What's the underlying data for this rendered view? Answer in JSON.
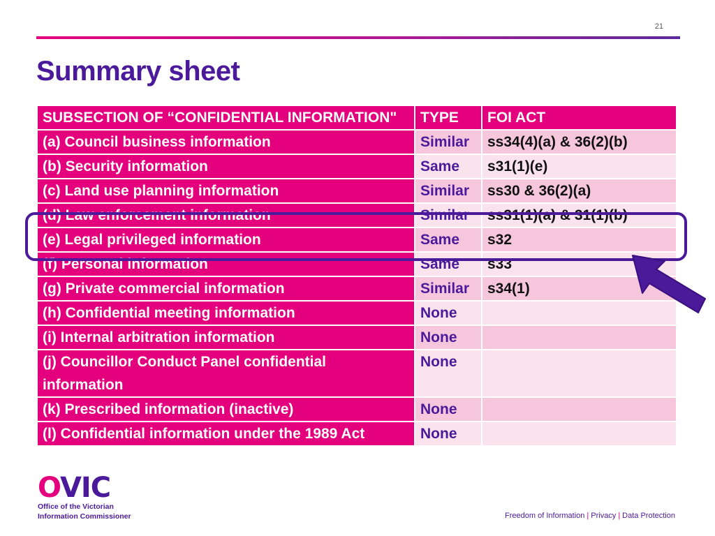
{
  "page_number": "21",
  "title": "Summary sheet",
  "table": {
    "headers": [
      "SUBSECTION OF “CONFIDENTIAL INFORMATION\"",
      "TYPE",
      "FOI ACT"
    ],
    "rows": [
      {
        "subsection": "(a) Council business information",
        "type": "Similar",
        "foi": "ss34(4)(a) & 36(2)(b)"
      },
      {
        "subsection": "(b) Security information",
        "type": "Same",
        "foi": "s31(1)(e)"
      },
      {
        "subsection": "(c) Land use planning information",
        "type": "Similar",
        "foi": "ss30 & 36(2)(a)"
      },
      {
        "subsection": "(d) Law enforcement information",
        "type": "Similar",
        "foi": "ss31(1)(a) & 31(1)(b)"
      },
      {
        "subsection": "(e) Legal privileged information",
        "type": "Same",
        "foi": "s32"
      },
      {
        "subsection": "(f) Personal information",
        "type": "Same",
        "foi": "s33"
      },
      {
        "subsection": "(g) Private commercial information",
        "type": "Similar",
        "foi": "s34(1)"
      },
      {
        "subsection": "(h) Confidential meeting information",
        "type": "None",
        "foi": ""
      },
      {
        "subsection": "(i) Internal arbitration information",
        "type": "None",
        "foi": ""
      },
      {
        "subsection": "(j) Councillor Conduct Panel confidential information",
        "type": "None",
        "foi": ""
      },
      {
        "subsection": "(k) Prescribed information (inactive)",
        "type": "None",
        "foi": ""
      },
      {
        "subsection": "(l) Confidential information under the 1989 Act",
        "type": "None",
        "foi": ""
      }
    ]
  },
  "logo": {
    "mark_o": "O",
    "mark_rest": "VIC",
    "line1": "Office of the Victorian",
    "line2": "Information Commissioner"
  },
  "footer": {
    "item1": "Freedom of Information",
    "item2": "Privacy",
    "item3": "Data Protection",
    "separator": "|"
  },
  "colors": {
    "magenta": "#e4007c",
    "purple": "#4b1a9a",
    "row_pink_dark": "#f6c7dc",
    "row_pink_light": "#fbe3ee"
  }
}
